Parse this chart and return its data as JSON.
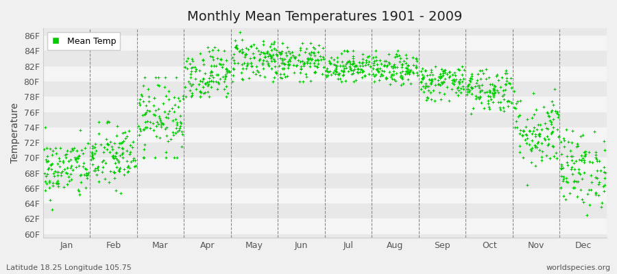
{
  "title": "Monthly Mean Temperatures 1901 - 2009",
  "ylabel": "Temperature",
  "subtitle_left": "Latitude 18.25 Longitude 105.75",
  "subtitle_right": "worldspecies.org",
  "legend_label": "Mean Temp",
  "dot_color": "#00cc00",
  "background_color": "#f0f0f0",
  "stripe_colors": [
    "#e8e8e8",
    "#f5f5f5"
  ],
  "ylim": [
    59.5,
    87
  ],
  "yticks": [
    60,
    62,
    64,
    66,
    68,
    70,
    72,
    74,
    76,
    78,
    80,
    82,
    84,
    86
  ],
  "ytick_labels": [
    "60F",
    "62F",
    "64F",
    "66F",
    "68F",
    "70F",
    "72F",
    "74F",
    "76F",
    "78F",
    "80F",
    "82F",
    "84F",
    "86F"
  ],
  "months": [
    "Jan",
    "Feb",
    "Mar",
    "Apr",
    "May",
    "Jun",
    "Jul",
    "Aug",
    "Sep",
    "Oct",
    "Nov",
    "Dec"
  ],
  "month_means": [
    68.5,
    70.0,
    75.5,
    81.0,
    83.0,
    82.5,
    82.0,
    81.5,
    80.0,
    79.0,
    73.5,
    68.5
  ],
  "month_stds": [
    2.0,
    2.2,
    2.5,
    1.8,
    1.5,
    1.2,
    1.0,
    1.0,
    1.2,
    1.5,
    2.5,
    2.5
  ],
  "month_mins": [
    60.0,
    63.0,
    70.0,
    78.0,
    80.0,
    80.0,
    80.0,
    79.5,
    77.5,
    75.0,
    64.5,
    62.5
  ],
  "month_maxs": [
    74.5,
    75.0,
    80.5,
    84.5,
    86.5,
    85.0,
    84.0,
    84.0,
    82.0,
    82.0,
    80.0,
    76.0
  ],
  "n_points": 109,
  "seed": 42
}
